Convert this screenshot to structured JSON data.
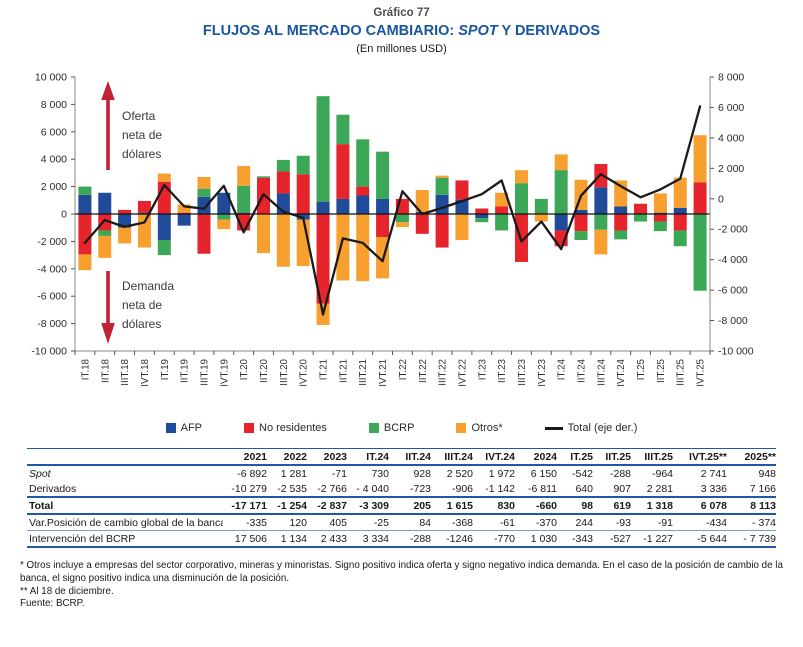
{
  "header": {
    "graph_number": "Gráfico 77",
    "title_pre": "FLUJOS AL MERCADO CAMBIARIO: ",
    "title_italic": "SPOT",
    "title_post": " Y DERIVADOS",
    "subtitle": "(En millones USD)"
  },
  "colors": {
    "afp_blue": "#1F4B99",
    "no_residentes_red": "#E5242B",
    "bcrp_green": "#3BA757",
    "otros_orange": "#F7A02F",
    "total_line": "#1a1a1a",
    "title_blue": "#1A55A0",
    "arrow_red": "#C22233",
    "table_rule_blue": "#2257A4",
    "axis_gray": "#8a8a8a"
  },
  "chart_data": {
    "type": "bar",
    "subtype": "stacked-bars-with-line-overlay",
    "categories": [
      "IT.18",
      "IIT.18",
      "IIIT.18",
      "IVT.18",
      "IT.19",
      "IIT.19",
      "IIIT.19",
      "IVT.19",
      "IT.20",
      "IIT.20",
      "IIIT.20",
      "IVT.20",
      "IT.21",
      "IIT.21",
      "IIIT.21",
      "IVT.21",
      "IT.22",
      "IIT.22",
      "IIIT.22",
      "IVT.22",
      "IT.23",
      "IIT.23",
      "IIIT.23",
      "IVT.23",
      "IT.24",
      "IIT.24",
      "IIIT.24",
      "IVT.24",
      "IT.25",
      "IIT.25",
      "IIIT.25",
      "IVT.25"
    ],
    "series": [
      {
        "name": "AFP",
        "color": "#1F4B99",
        "values": [
          1400,
          1550,
          -1000,
          100,
          -1900,
          -850,
          1250,
          1550,
          100,
          0,
          1500,
          -400,
          900,
          1100,
          1350,
          1100,
          0,
          150,
          1400,
          1050,
          -300,
          0,
          0,
          0,
          -1200,
          300,
          1950,
          550,
          0,
          100,
          450,
          0
        ]
      },
      {
        "name": "No residentes",
        "color": "#E5242B",
        "values": [
          -2950,
          -1200,
          300,
          850,
          2350,
          100,
          -2900,
          0,
          -1200,
          2650,
          1600,
          2900,
          -6550,
          4000,
          650,
          -1700,
          1100,
          -1450,
          -2450,
          1400,
          400,
          550,
          -3500,
          0,
          -1150,
          -1250,
          1700,
          -1200,
          750,
          -550,
          -1200,
          2300
        ]
      },
      {
        "name": "BCRP",
        "color": "#3BA757",
        "values": [
          600,
          -400,
          0,
          0,
          -1100,
          0,
          600,
          -400,
          1950,
          100,
          850,
          1350,
          7700,
          2150,
          3450,
          3450,
          -600,
          0,
          1250,
          0,
          -300,
          -1200,
          2250,
          1100,
          3200,
          -650,
          -1150,
          -650,
          -550,
          -700,
          -1150,
          -5600
        ]
      },
      {
        "name": "Otros*",
        "color": "#F7A02F",
        "values": [
          -1150,
          -1600,
          -1150,
          -2450,
          600,
          600,
          850,
          -700,
          1450,
          -2850,
          -3850,
          -3400,
          -1550,
          -4850,
          -4900,
          -3000,
          -350,
          1600,
          150,
          -1900,
          0,
          1000,
          950,
          -550,
          1150,
          2200,
          -1800,
          1900,
          0,
          1400,
          2200,
          3450
        ]
      }
    ],
    "line_overlay": {
      "name": "Total (eje der.)",
      "color": "#1a1a1a",
      "axis": "right",
      "values": [
        -2900,
        -1400,
        -1850,
        -1550,
        900,
        -500,
        -650,
        850,
        -2200,
        300,
        -850,
        -1250,
        -7600,
        -2600,
        -2900,
        -4100,
        500,
        -1000,
        -600,
        -150,
        300,
        1200,
        -2800,
        -1500,
        -3309,
        205,
        1615,
        830,
        98,
        619,
        1318,
        6078
      ]
    },
    "left_axis": {
      "min": -10000,
      "max": 10000,
      "tick_labels": [
        "10 000",
        "8 000",
        "6 000",
        "4 000",
        "2 000",
        "0",
        "-2 000",
        "-4 000",
        "-6 000",
        "-8 000",
        "-10 000"
      ]
    },
    "right_axis": {
      "min": -10000,
      "max": 8000,
      "tick_labels": [
        "8 000",
        "6 000",
        "4 000",
        "2 000",
        "0",
        "-2 000",
        "-4 000",
        "-6 000",
        "-8 000",
        "-10 000"
      ]
    },
    "grid": false,
    "legend_position": "bottom",
    "annotations": {
      "supply": {
        "direction": "up",
        "lines": [
          "Oferta",
          "neta de",
          "dólares"
        ]
      },
      "demand": {
        "direction": "down",
        "lines": [
          "Demanda",
          "neta de",
          "dólares"
        ]
      }
    }
  },
  "legend_items": [
    {
      "type": "swatch",
      "color": "#1F4B99",
      "label": "AFP"
    },
    {
      "type": "swatch",
      "color": "#E5242B",
      "label": "No residentes"
    },
    {
      "type": "swatch",
      "color": "#3BA757",
      "label": "BCRP"
    },
    {
      "type": "swatch",
      "color": "#F7A02F",
      "label": "Otros*"
    },
    {
      "type": "line",
      "color": "#1a1a1a",
      "label": "Total (eje der.)"
    }
  ],
  "table": {
    "headers": [
      "",
      "2021",
      "2022",
      "2023",
      "IT.24",
      "IIT.24",
      "IIIT.24",
      "IVT.24",
      "2024",
      "IT.25",
      "IIT.25",
      "IIIT.25",
      "IVT.25**",
      "2025**"
    ],
    "rows": [
      {
        "label": "Spot",
        "style": "italic",
        "values": [
          "-6 892",
          "1 281",
          "-71",
          "730",
          "928",
          "2 520",
          "1 972",
          "6 150",
          "-542",
          "-288",
          "-964",
          "2 741",
          "948"
        ]
      },
      {
        "label": "Derivados",
        "style": "derivados",
        "values": [
          "-10 279",
          "-2 535",
          "-2 766",
          "- 4 040",
          "-723",
          "-906",
          "-1 142",
          "-6 811",
          "640",
          "907",
          "2 281",
          "3 336",
          "7 166"
        ]
      },
      {
        "label": "Total",
        "style": "total",
        "values": [
          "-17 171",
          "-1 254",
          "-2 837",
          "-3 309",
          "205",
          "1 615",
          "830",
          "-660",
          "98",
          "619",
          "1 318",
          "6 078",
          "8 113"
        ]
      },
      {
        "label": "Var.Posición de cambio global de la banca",
        "style": "var",
        "values": [
          "-335",
          "120",
          "405",
          "-25",
          "84",
          "-368",
          "-61",
          "-370",
          "244",
          "-93",
          "-91",
          "-434",
          "- 374"
        ]
      },
      {
        "label": "Intervención del BCRP",
        "style": "interv",
        "values": [
          "17 506",
          "1 134",
          "2 433",
          "3 334",
          "-288",
          "-1246",
          "-770",
          "1 030",
          "-343",
          "-527",
          "-1 227",
          "-5 644",
          "- 7 739"
        ]
      }
    ]
  },
  "footnotes": [
    "* Otros incluye a empresas del sector corporativo, mineras y minoristas. Signo positivo indica oferta y signo negativo indica demanda. En el caso de la posición de cambio de la banca, el signo positivo indica una disminución de la posición.",
    "** Al 18 de diciembre.",
    "Fuente: BCRP."
  ]
}
